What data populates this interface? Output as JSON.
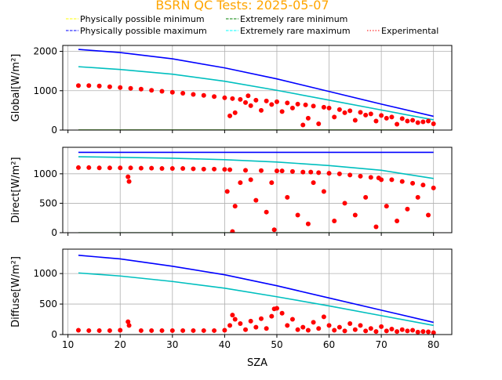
{
  "figure": {
    "title": "BSRN QC Tests: 2025-05-07",
    "title_color": "#ffa500",
    "xlabel": "SZA"
  },
  "legend": {
    "placement": "top",
    "entries": [
      {
        "label": "Physically possible minimum",
        "color": "#ffff00",
        "style": "dashed"
      },
      {
        "label": "Extremely rare minimum",
        "color": "#008000",
        "style": "dashed"
      },
      {
        "label": "Physically possible maximum",
        "color": "#0000ff",
        "style": "dashed"
      },
      {
        "label": "Extremely rare maximum",
        "color": "#00ffff",
        "style": "dashed"
      },
      {
        "label": "Experimental",
        "color": "#ff0000",
        "style": "dotted"
      }
    ]
  },
  "chart_data": [
    {
      "type": "scatter",
      "ylabel": "Global[W/m²]",
      "xlim": [
        9,
        83.5
      ],
      "ylim": [
        0,
        2150
      ],
      "xticks": [
        10,
        20,
        30,
        40,
        50,
        60,
        70,
        80
      ],
      "yticks": [
        0,
        1000,
        2000
      ],
      "grid": true,
      "series": [
        {
          "name": "Physically possible minimum",
          "kind": "line",
          "color": "#ffff00",
          "x": [
            12,
            80
          ],
          "y": [
            -4,
            -4
          ]
        },
        {
          "name": "Extremely rare minimum",
          "kind": "line",
          "color": "#008000",
          "x": [
            12,
            80
          ],
          "y": [
            -2,
            -2
          ]
        },
        {
          "name": "Physically possible maximum",
          "kind": "line",
          "color": "#0000ff",
          "x": [
            12,
            20,
            30,
            40,
            50,
            60,
            70,
            80
          ],
          "y": [
            2050,
            1970,
            1810,
            1580,
            1300,
            980,
            660,
            350
          ]
        },
        {
          "name": "Extremely rare maximum",
          "kind": "line",
          "color": "#00bfbf",
          "x": [
            12,
            20,
            30,
            40,
            50,
            60,
            70,
            80
          ],
          "y": [
            1610,
            1540,
            1420,
            1240,
            1010,
            760,
            510,
            260
          ]
        },
        {
          "name": "Experimental",
          "kind": "points",
          "color": "#ff0000",
          "x": [
            12,
            14,
            16,
            18,
            20,
            22,
            24,
            26,
            28,
            30,
            32,
            34,
            36,
            38,
            40,
            41,
            41.5,
            42,
            43,
            44,
            44.5,
            45,
            46,
            47,
            48,
            49,
            50,
            51,
            52,
            53,
            54,
            55,
            55.5,
            56,
            57,
            58,
            59,
            60,
            61,
            62,
            63,
            64,
            65,
            66,
            67,
            68,
            69,
            70,
            71,
            72,
            73,
            74,
            75,
            76,
            77,
            78,
            79,
            80
          ],
          "y": [
            1130,
            1130,
            1120,
            1100,
            1080,
            1060,
            1040,
            1010,
            985,
            960,
            935,
            905,
            880,
            850,
            820,
            360,
            800,
            440,
            780,
            700,
            870,
            620,
            760,
            500,
            740,
            650,
            720,
            470,
            690,
            560,
            660,
            130,
            640,
            300,
            610,
            160,
            580,
            560,
            330,
            520,
            440,
            490,
            250,
            450,
            380,
            410,
            230,
            370,
            300,
            330,
            150,
            290,
            230,
            250,
            190,
            210,
            230,
            160
          ]
        }
      ]
    },
    {
      "type": "scatter",
      "ylabel": "Direct[W/m²]",
      "xlim": [
        9,
        83.5
      ],
      "ylim": [
        0,
        1450
      ],
      "xticks": [
        10,
        20,
        30,
        40,
        50,
        60,
        70,
        80
      ],
      "yticks": [
        0,
        500,
        1000
      ],
      "grid": true,
      "series": [
        {
          "name": "Physically possible minimum",
          "kind": "line",
          "color": "#ffff00",
          "x": [
            12,
            80
          ],
          "y": [
            -4,
            -4
          ]
        },
        {
          "name": "Extremely rare minimum",
          "kind": "line",
          "color": "#008000",
          "x": [
            12,
            80
          ],
          "y": [
            -2,
            -2
          ]
        },
        {
          "name": "Physically possible maximum",
          "kind": "line",
          "color": "#0000ff",
          "x": [
            12,
            80
          ],
          "y": [
            1365,
            1365
          ]
        },
        {
          "name": "Extremely rare maximum",
          "kind": "line",
          "color": "#00bfbf",
          "x": [
            12,
            20,
            30,
            40,
            50,
            60,
            70,
            80
          ],
          "y": [
            1290,
            1280,
            1265,
            1240,
            1200,
            1140,
            1060,
            920
          ]
        },
        {
          "name": "Experimental",
          "kind": "points",
          "color": "#ff0000",
          "x": [
            12,
            14,
            16,
            18,
            20,
            21.5,
            21.7,
            22,
            24,
            26,
            28,
            30,
            32,
            34,
            36,
            38,
            40,
            40.5,
            41,
            41.5,
            42,
            43,
            44,
            45,
            46,
            47,
            48,
            49,
            49.5,
            50,
            51,
            52,
            53,
            54,
            55,
            56,
            56.5,
            57,
            58,
            59,
            60,
            61,
            62,
            63,
            64,
            65,
            66,
            67,
            68,
            69,
            69.5,
            70,
            71,
            72,
            73,
            74,
            75,
            76,
            77,
            78,
            79,
            80
          ],
          "y": [
            1105,
            1105,
            1100,
            1100,
            1100,
            950,
            870,
            1100,
            1095,
            1095,
            1090,
            1090,
            1090,
            1085,
            1080,
            1080,
            1075,
            700,
            1070,
            20,
            450,
            850,
            1060,
            900,
            550,
            1055,
            350,
            850,
            50,
            1050,
            1050,
            600,
            1040,
            300,
            1030,
            150,
            1030,
            850,
            1020,
            700,
            1010,
            200,
            1000,
            500,
            980,
            300,
            960,
            600,
            940,
            100,
            930,
            900,
            450,
            900,
            200,
            870,
            400,
            840,
            600,
            810,
            300,
            760
          ]
        }
      ]
    },
    {
      "type": "scatter",
      "ylabel": "Diffuse[W/m²]",
      "xlim": [
        9,
        83.5
      ],
      "ylim": [
        0,
        1400
      ],
      "xticks": [
        10,
        20,
        30,
        40,
        50,
        60,
        70,
        80
      ],
      "yticks": [
        0,
        500,
        1000
      ],
      "grid": true,
      "series": [
        {
          "name": "Physically possible maximum",
          "kind": "line",
          "color": "#0000ff",
          "x": [
            12,
            20,
            30,
            40,
            50,
            60,
            70,
            80
          ],
          "y": [
            1300,
            1240,
            1120,
            980,
            800,
            600,
            400,
            200
          ]
        },
        {
          "name": "Extremely rare maximum",
          "kind": "line",
          "color": "#00bfbf",
          "x": [
            12,
            20,
            30,
            40,
            50,
            60,
            70,
            80
          ],
          "y": [
            1010,
            960,
            870,
            760,
            620,
            470,
            310,
            150
          ]
        },
        {
          "name": "Experimental",
          "kind": "points",
          "color": "#ff0000",
          "x": [
            12,
            14,
            16,
            18,
            20,
            21.5,
            21.7,
            24,
            26,
            28,
            30,
            32,
            34,
            36,
            38,
            40,
            41,
            41.5,
            42,
            43,
            44,
            45,
            46,
            47,
            48,
            49,
            49.5,
            50,
            51,
            52,
            53,
            54,
            55,
            56,
            57,
            58,
            59,
            60,
            61,
            62,
            63,
            64,
            65,
            66,
            67,
            68,
            69,
            70,
            71,
            72,
            73,
            74,
            75,
            76,
            77,
            78,
            79,
            80
          ],
          "y": [
            70,
            65,
            65,
            65,
            70,
            210,
            150,
            65,
            65,
            65,
            65,
            65,
            65,
            65,
            65,
            70,
            150,
            320,
            250,
            180,
            80,
            220,
            120,
            260,
            100,
            300,
            420,
            430,
            350,
            150,
            250,
            80,
            120,
            70,
            200,
            100,
            290,
            150,
            70,
            120,
            60,
            180,
            80,
            150,
            60,
            100,
            50,
            130,
            60,
            90,
            50,
            80,
            60,
            70,
            40,
            50,
            45,
            30
          ]
        }
      ]
    }
  ]
}
